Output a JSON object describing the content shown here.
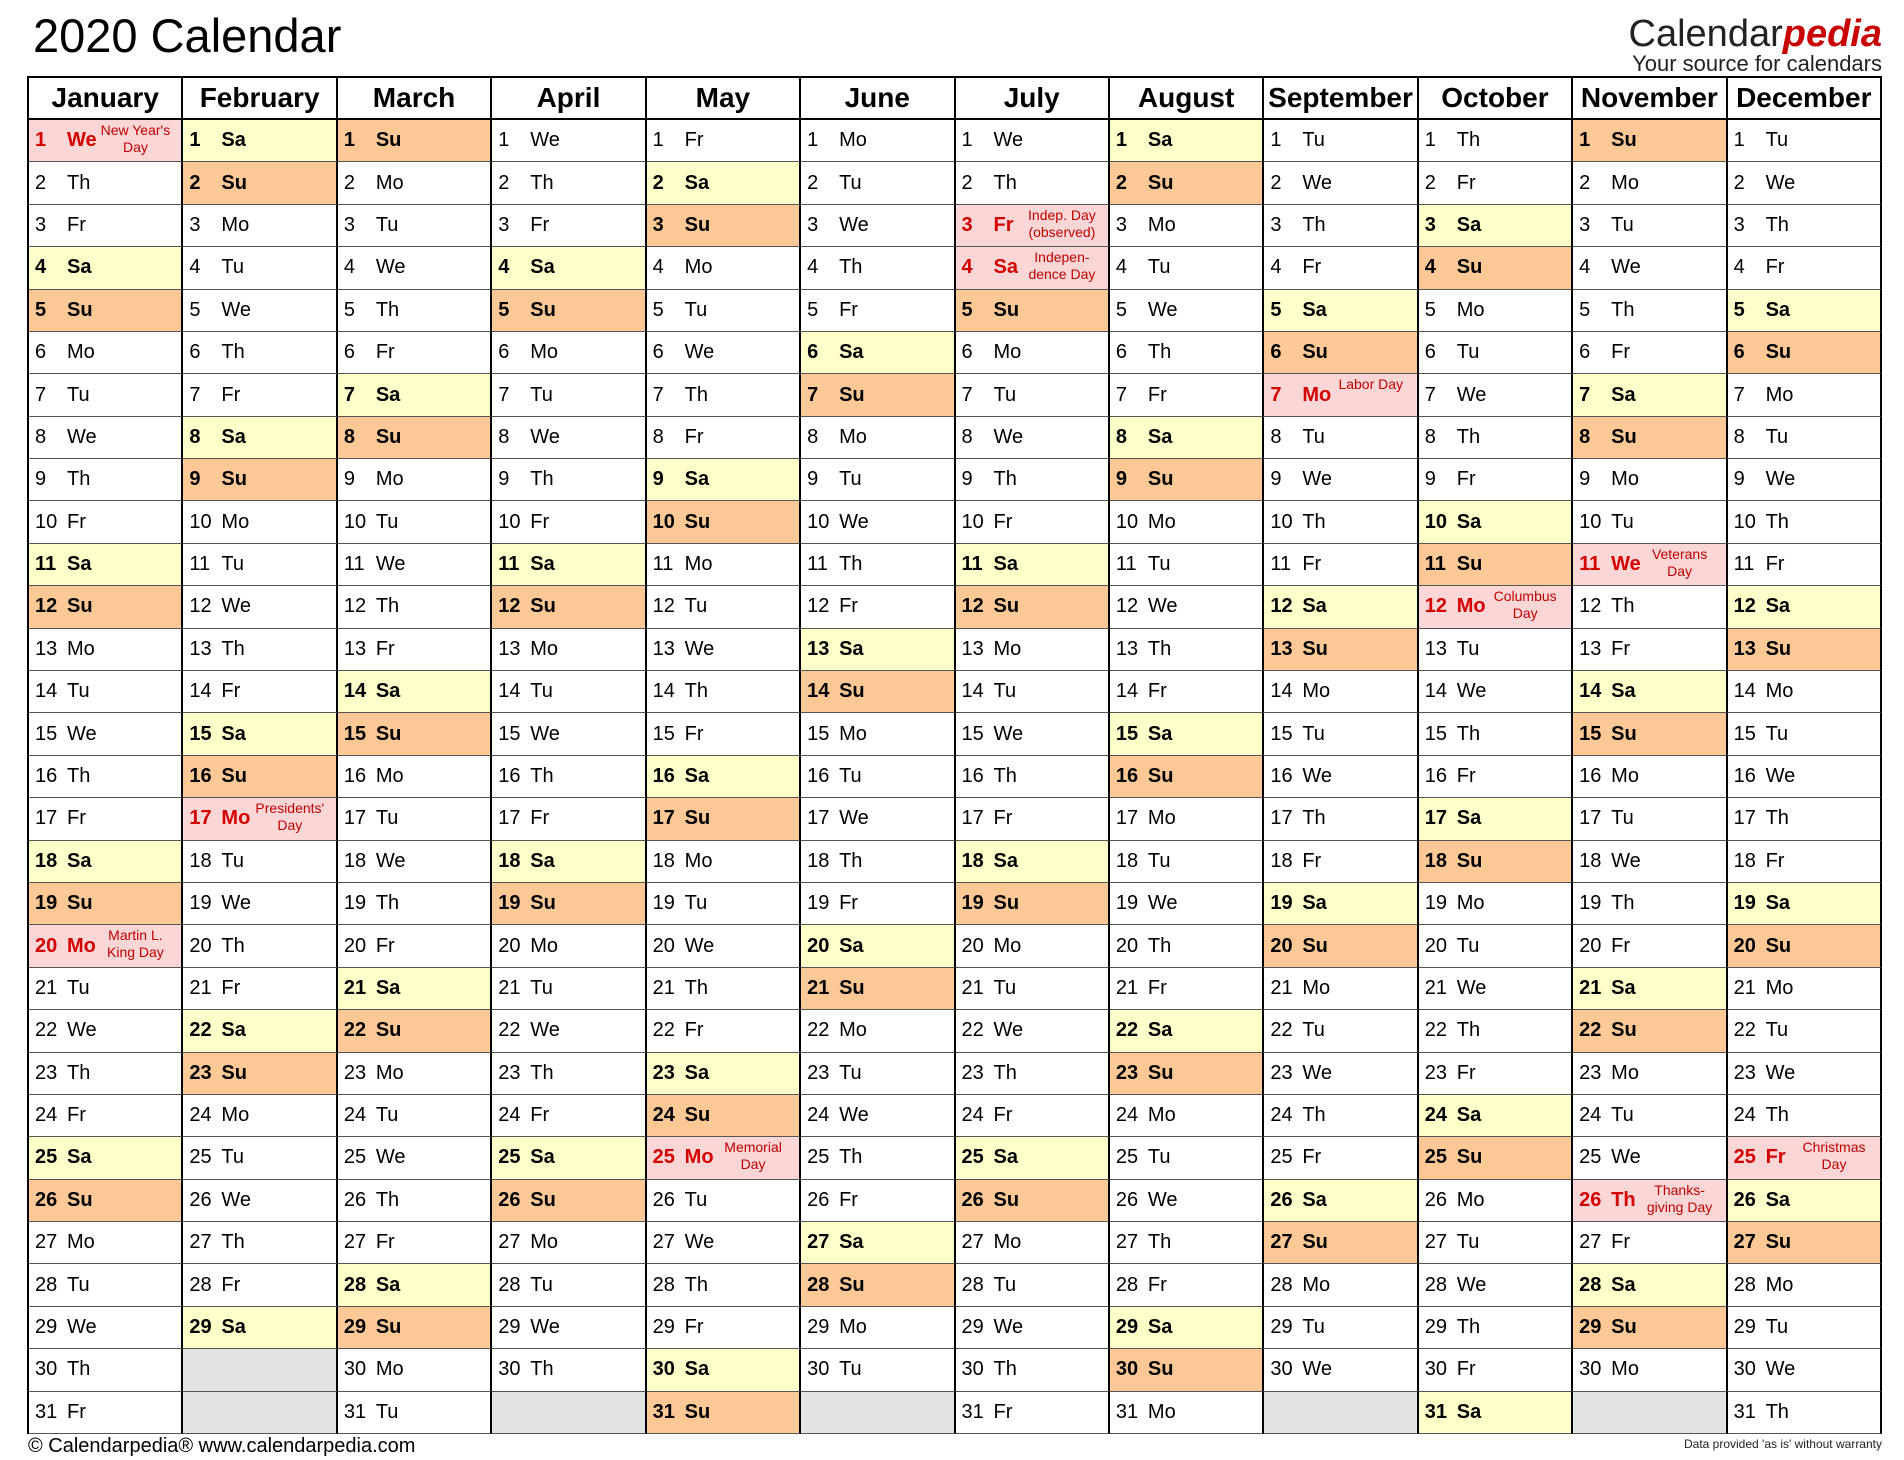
{
  "title": "2020 Calendar",
  "brand": {
    "name_plain": "Calendar",
    "name_accent": "pedia",
    "tagline": "Your source for calendars"
  },
  "footer": {
    "left": "© Calendarpedia®   www.calendarpedia.com",
    "right": "Data provided 'as is' without warranty"
  },
  "colors": {
    "saturday": "#ffffc9",
    "sunday": "#fcc996",
    "holiday": "#fbd6d6",
    "holiday_text": "#d40000",
    "empty": "#e3e3e3"
  },
  "day_names": [
    "Mo",
    "Tu",
    "We",
    "Th",
    "Fr",
    "Sa",
    "Su"
  ],
  "months": [
    {
      "name": "January",
      "days": 31,
      "start": 3,
      "holidays": {
        "1": "New Year's Day",
        "20": "Martin L. King Day"
      }
    },
    {
      "name": "February",
      "days": 29,
      "start": 6,
      "holidays": {
        "17": "Presidents' Day"
      }
    },
    {
      "name": "March",
      "days": 31,
      "start": 7,
      "holidays": {}
    },
    {
      "name": "April",
      "days": 30,
      "start": 3,
      "holidays": {}
    },
    {
      "name": "May",
      "days": 31,
      "start": 5,
      "holidays": {
        "25": "Memorial Day"
      }
    },
    {
      "name": "June",
      "days": 30,
      "start": 1,
      "holidays": {}
    },
    {
      "name": "July",
      "days": 31,
      "start": 3,
      "holidays": {
        "3": "Indep. Day (observed)",
        "4": "Indepen-dence Day"
      }
    },
    {
      "name": "August",
      "days": 31,
      "start": 6,
      "holidays": {}
    },
    {
      "name": "September",
      "days": 30,
      "start": 2,
      "holidays": {
        "7": "Labor Day"
      }
    },
    {
      "name": "October",
      "days": 31,
      "start": 4,
      "holidays": {
        "12": "Columbus Day"
      }
    },
    {
      "name": "November",
      "days": 30,
      "start": 7,
      "holidays": {
        "11": "Veterans Day",
        "26": "Thanks-giving Day"
      }
    },
    {
      "name": "December",
      "days": 31,
      "start": 2,
      "holidays": {
        "25": "Christmas Day"
      }
    }
  ]
}
